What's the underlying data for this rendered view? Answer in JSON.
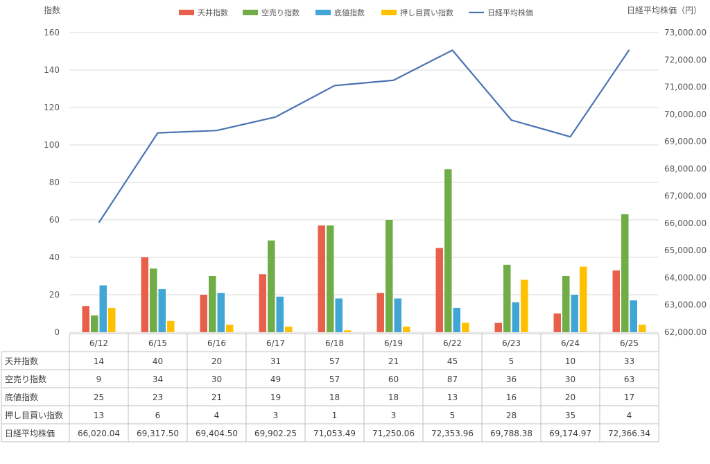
{
  "chart_data": {
    "type": "bar",
    "categories": [
      "6/12",
      "6/15",
      "6/16",
      "6/17",
      "6/18",
      "6/19",
      "6/22",
      "6/23",
      "6/24",
      "6/25"
    ],
    "y_left_label": "指数",
    "y_right_label": "日経平均株価（円）",
    "ylim_left": [
      0,
      160
    ],
    "ylim_right": [
      62000,
      73000
    ],
    "left_ticks": [
      "0",
      "20",
      "40",
      "60",
      "80",
      "100",
      "120",
      "140",
      "160"
    ],
    "right_ticks": [
      "62,000.00",
      "63,000.00",
      "64,000.00",
      "65,000.00",
      "66,000.00",
      "67,000.00",
      "68,000.00",
      "69,000.00",
      "70,000.00",
      "71,000.00",
      "72,000.00",
      "73,000.00"
    ],
    "grid": true,
    "legend_position": "top",
    "series": [
      {
        "name": "天井指数",
        "kind": "bar",
        "axis": "left",
        "color": "#E8604C",
        "values": [
          14,
          40,
          20,
          31,
          57,
          21,
          45,
          5,
          10,
          33
        ],
        "labels": [
          "14",
          "40",
          "20",
          "31",
          "57",
          "21",
          "45",
          "5",
          "10",
          "33"
        ]
      },
      {
        "name": "空売り指数",
        "kind": "bar",
        "axis": "left",
        "color": "#70AD47",
        "values": [
          9,
          34,
          30,
          49,
          57,
          60,
          87,
          36,
          30,
          63
        ],
        "labels": [
          "9",
          "34",
          "30",
          "49",
          "57",
          "60",
          "87",
          "36",
          "30",
          "63"
        ]
      },
      {
        "name": "底値指数",
        "kind": "bar",
        "axis": "left",
        "color": "#41A5D6",
        "values": [
          25,
          23,
          21,
          19,
          18,
          18,
          13,
          16,
          20,
          17
        ],
        "labels": [
          "25",
          "23",
          "21",
          "19",
          "18",
          "18",
          "13",
          "16",
          "20",
          "17"
        ]
      },
      {
        "name": "押し目買い指数",
        "kind": "bar",
        "axis": "left",
        "color": "#FFC000",
        "values": [
          13,
          6,
          4,
          3,
          1,
          3,
          5,
          28,
          35,
          4
        ],
        "labels": [
          "13",
          "6",
          "4",
          "3",
          "1",
          "3",
          "5",
          "28",
          "35",
          "4"
        ]
      },
      {
        "name": "日経平均株価",
        "kind": "line",
        "axis": "right",
        "color": "#4A73B2",
        "values": [
          66020.04,
          69317.5,
          69404.5,
          69902.25,
          71053.49,
          71250.06,
          72353.96,
          69788.38,
          69174.97,
          72366.34
        ],
        "labels": [
          "66,020.04",
          "69,317.50",
          "69,404.50",
          "69,902.25",
          "71,053.49",
          "71,250.06",
          "72,353.96",
          "69,788.38",
          "69,174.97",
          "72,366.34"
        ]
      }
    ]
  }
}
